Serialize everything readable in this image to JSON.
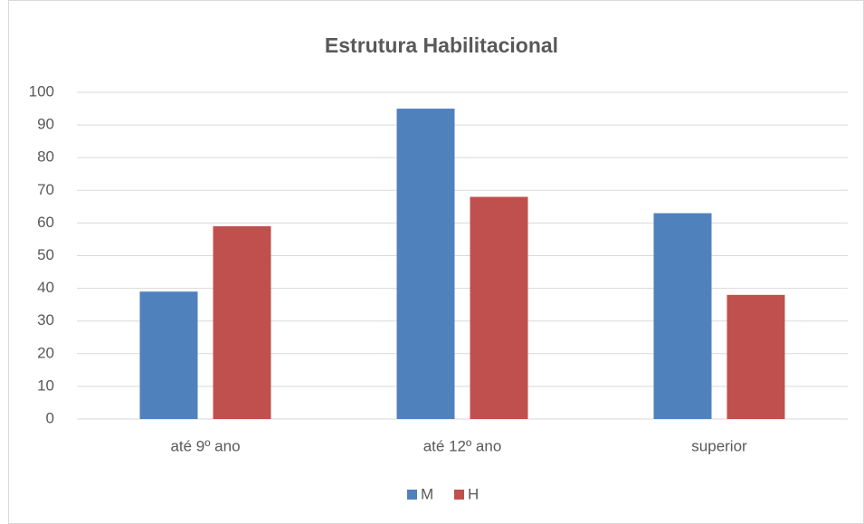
{
  "chart_data": {
    "type": "bar",
    "title": "Estrutura Habilitacional",
    "categories": [
      "até 9º ano",
      "até 12º ano",
      "superior"
    ],
    "series": [
      {
        "name": "M",
        "color": "#4f81bd",
        "values": [
          39,
          95,
          63
        ]
      },
      {
        "name": "H",
        "color": "#c0504d",
        "values": [
          59,
          68,
          38
        ]
      }
    ],
    "ylim": [
      0,
      100
    ],
    "yticks": [
      0,
      10,
      20,
      30,
      40,
      50,
      60,
      70,
      80,
      90,
      100
    ],
    "grid": true,
    "legend": "bottom"
  }
}
